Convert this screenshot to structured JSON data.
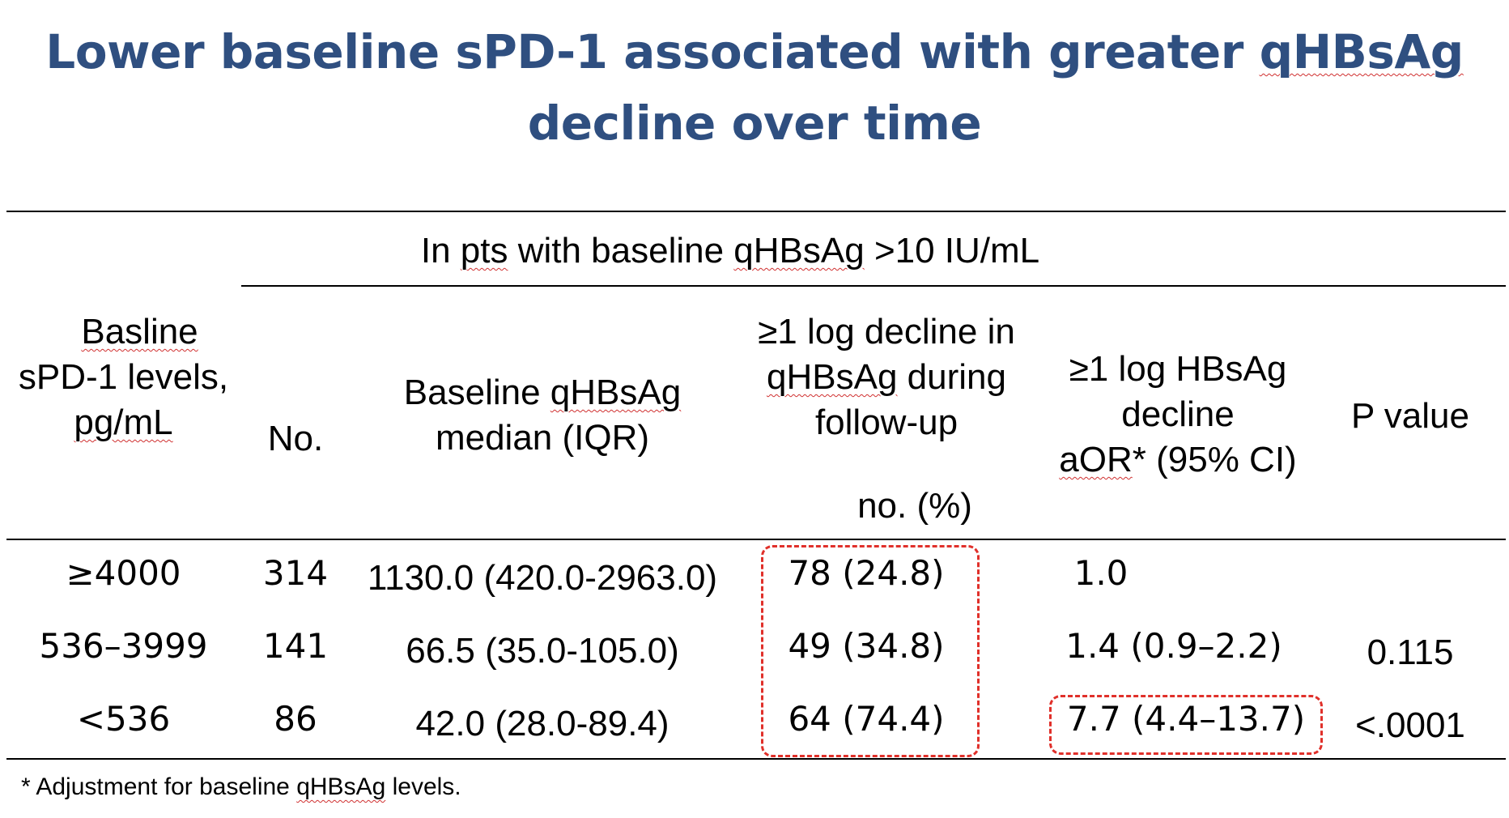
{
  "title": {
    "line1_prefix": "Lower baseline sPD-1 associated with greater ",
    "line1_term": "qHBsAg",
    "line2": "decline over time"
  },
  "table": {
    "group_header": {
      "prefix": "In ",
      "pts": "pts",
      "middle": " with baseline ",
      "term": "qHBsAg",
      "suffix": " >10 IU/mL"
    },
    "col_baseline": {
      "line1": "Basline",
      "line2": "sPD-1 levels,",
      "line3": "pg/mL"
    },
    "col_no": "No.",
    "col_qhbsag": {
      "line1_prefix": "Baseline ",
      "line1_term": "qHBsAg",
      "line2": "median (IQR)"
    },
    "col_decline": {
      "line1": "≥1 log decline in",
      "line2_term": "qHBsAg",
      "line2_suffix": " during",
      "line3": "follow-up",
      "line4": "no. (%)"
    },
    "col_aor": {
      "line1": "≥1 log HBsAg",
      "line2": "decline",
      "line3_term": "aOR",
      "line3_suffix": "* (95% CI)"
    },
    "col_p": "P value",
    "rows": [
      {
        "level": "≥4000",
        "no": "314",
        "median": "1130.0 (420.0-2963.0)",
        "decline": "78 (24.8)",
        "aor": "1.0",
        "p": ""
      },
      {
        "level": "536–3999",
        "no": "141",
        "median": "66.5 (35.0-105.0)",
        "decline": "49 (34.8)",
        "aor": "1.4 (0.9–2.2)",
        "p": "0.115"
      },
      {
        "level": "<536",
        "no": "86",
        "median": "42.0 (28.0-89.4)",
        "decline": "64 (74.4)",
        "aor": "7.7 (4.4–13.7)",
        "p": "<.0001"
      }
    ]
  },
  "footnote": {
    "prefix": "* Adjustment for baseline ",
    "term": "qHBsAg",
    "suffix": " levels."
  },
  "colors": {
    "title": "#2f4f80",
    "highlight_box": "#e0302a",
    "spellcheck": "#d03030"
  }
}
